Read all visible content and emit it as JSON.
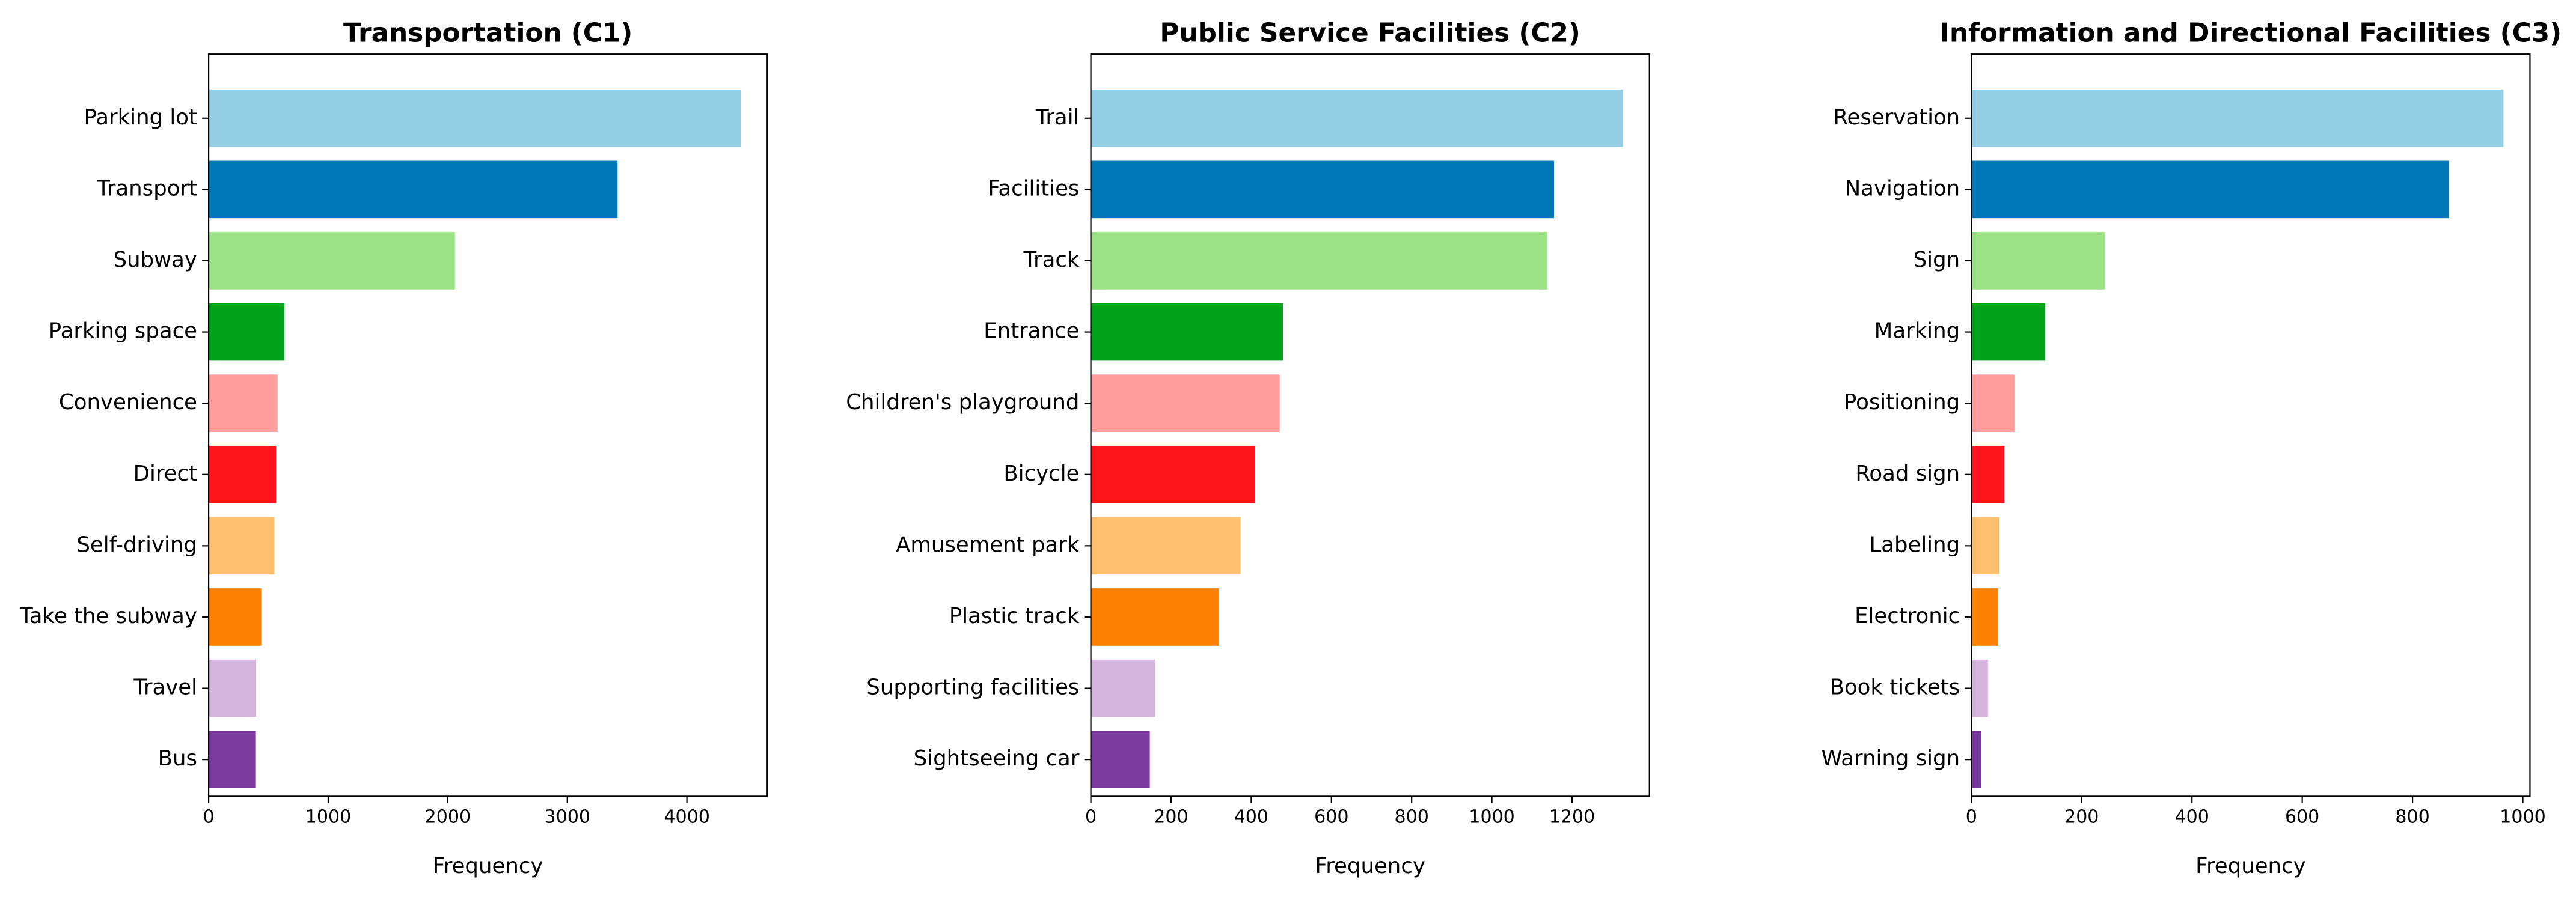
{
  "chart_data": [
    {
      "type": "barh",
      "title": "Transportation (C1)",
      "xlabel": "Frequency",
      "categories": [
        "Parking lot",
        "Transport",
        "Subway",
        "Parking space",
        "Convenience",
        "Direct",
        "Self-driving",
        "Take the subway",
        "Travel",
        "Bus"
      ],
      "values": [
        4450,
        3420,
        2060,
        632,
        577,
        563,
        550,
        440,
        398,
        395
      ],
      "colors": [
        "#94cee4",
        "#0077b6",
        "#9be287",
        "#00a31a",
        "#ff9c9c",
        "#ff141e",
        "#ffbf6e",
        "#ff7f00",
        "#d4b3dc",
        "#7b3aa0"
      ],
      "xlim": [
        0,
        4672
      ],
      "xticks": [
        0,
        1000,
        2000,
        3000,
        4000
      ]
    },
    {
      "type": "barh",
      "title": "Public Service Facilities (C2)",
      "xlabel": "Frequency",
      "categories": [
        "Trail",
        "Facilities",
        "Track",
        "Entrance",
        "Children's playground",
        "Bicycle",
        "Amusement park",
        "Plastic track",
        "Supporting facilities",
        "Sightseeing car"
      ],
      "values": [
        1327,
        1155,
        1138,
        479,
        471,
        410,
        373,
        319,
        160,
        147
      ],
      "colors": [
        "#94cee4",
        "#0077b6",
        "#9be287",
        "#00a31a",
        "#ff9c9c",
        "#ff141e",
        "#ffbf6e",
        "#ff7f00",
        "#d4b3dc",
        "#7b3aa0"
      ],
      "xlim": [
        0,
        1393
      ],
      "xticks": [
        0,
        200,
        400,
        600,
        800,
        1000,
        1200
      ]
    },
    {
      "type": "barh",
      "title": "Information and Directional Facilities (C3)",
      "xlabel": "Frequency",
      "categories": [
        "Reservation",
        "Navigation",
        "Sign",
        "Marking",
        "Positioning",
        "Road sign",
        "Labeling",
        "Electronic",
        "Book tickets",
        "Warning sign"
      ],
      "values": [
        965,
        866,
        242,
        134,
        78,
        60,
        51,
        48,
        30,
        18
      ],
      "colors": [
        "#94cee4",
        "#0077b6",
        "#9be287",
        "#00a31a",
        "#ff9c9c",
        "#ff141e",
        "#ffbf6e",
        "#ff7f00",
        "#d4b3dc",
        "#7b3aa0"
      ],
      "xlim": [
        0,
        1013
      ],
      "xticks": [
        0,
        200,
        400,
        600,
        800,
        1000
      ]
    }
  ]
}
